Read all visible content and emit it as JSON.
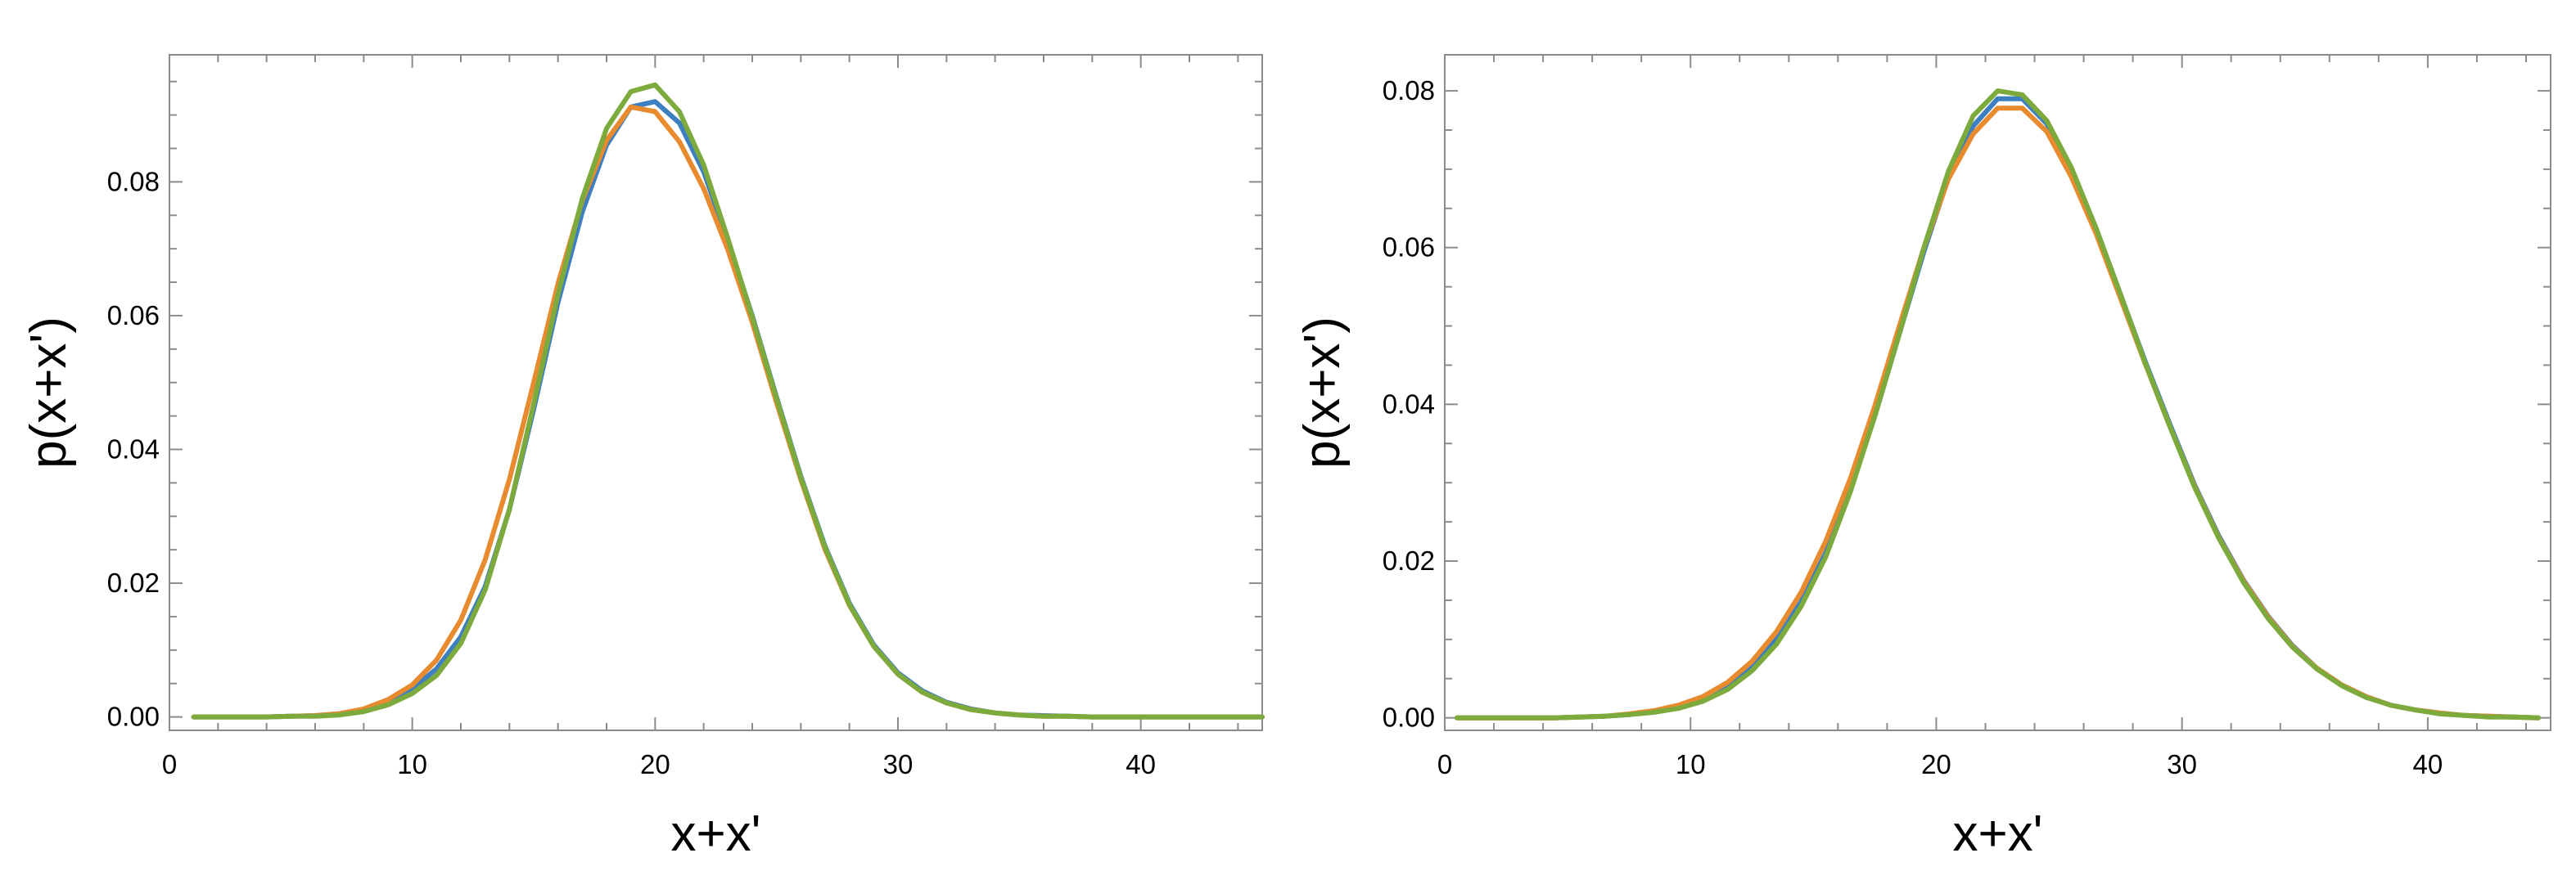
{
  "chart_data": [
    {
      "type": "line",
      "title": "",
      "xlabel": "x+x'",
      "ylabel": "p(x+x')",
      "xlim": [
        0,
        45
      ],
      "ylim": [
        -0.002,
        0.099
      ],
      "xticks": [
        0,
        10,
        20,
        30,
        40
      ],
      "xtick_labels": [
        "0",
        "10",
        "20",
        "30",
        "40"
      ],
      "yticks": [
        0,
        0.02,
        0.04,
        0.06,
        0.08
      ],
      "ytick_labels": [
        "0.00",
        "0.02",
        "0.04",
        "0.06",
        "0.08"
      ],
      "grid": false,
      "legend": "none",
      "x": [
        1,
        2,
        3,
        4,
        5,
        6,
        7,
        8,
        9,
        10,
        11,
        12,
        13,
        14,
        15,
        16,
        17,
        18,
        19,
        20,
        21,
        22,
        23,
        24,
        25,
        26,
        27,
        28,
        29,
        30,
        31,
        32,
        33,
        34,
        35,
        36,
        37,
        38,
        39,
        40,
        41,
        42,
        43,
        44,
        45
      ],
      "series": [
        {
          "color": "#3d7fc1",
          "values": [
            0,
            0,
            0,
            0,
            0.0001,
            0.0002,
            0.0005,
            0.0011,
            0.0023,
            0.0042,
            0.0072,
            0.012,
            0.0195,
            0.031,
            0.046,
            0.062,
            0.0755,
            0.0855,
            0.0912,
            0.092,
            0.0888,
            0.0815,
            0.0712,
            0.06,
            0.0478,
            0.036,
            0.0255,
            0.017,
            0.0108,
            0.0066,
            0.0039,
            0.0022,
            0.0012,
            0.0006,
            0.0003,
            0.0002,
            0.0001,
            0,
            0,
            0,
            0,
            0,
            0,
            0,
            0
          ]
        },
        {
          "color": "#e88a2e",
          "values": [
            0,
            0,
            0,
            0,
            0.0001,
            0.0002,
            0.0005,
            0.0012,
            0.0026,
            0.0048,
            0.0085,
            0.0145,
            0.0235,
            0.0355,
            0.05,
            0.0648,
            0.0772,
            0.0862,
            0.0912,
            0.0905,
            0.086,
            0.079,
            0.0698,
            0.059,
            0.047,
            0.0355,
            0.025,
            0.0167,
            0.0106,
            0.0064,
            0.0037,
            0.0021,
            0.0011,
            0.0006,
            0.0003,
            0.0001,
            0.0001,
            0,
            0,
            0,
            0,
            0,
            0,
            0,
            0
          ]
        },
        {
          "color": "#7daa3c",
          "values": [
            0,
            0,
            0,
            0,
            0.0001,
            0.0001,
            0.0003,
            0.0008,
            0.0018,
            0.0035,
            0.0062,
            0.011,
            0.019,
            0.031,
            0.0468,
            0.0632,
            0.0775,
            0.088,
            0.0935,
            0.0945,
            0.0905,
            0.0825,
            0.0715,
            0.0598,
            0.0476,
            0.0358,
            0.0253,
            0.0168,
            0.0106,
            0.0064,
            0.0037,
            0.0021,
            0.0011,
            0.0006,
            0.0003,
            0.0001,
            0.0001,
            0,
            0,
            0,
            0,
            0,
            0,
            0,
            0
          ]
        }
      ]
    },
    {
      "type": "line",
      "title": "",
      "xlabel": "x+x'",
      "ylabel": "p(x+x')",
      "xlim": [
        0,
        45
      ],
      "ylim": [
        -0.0016,
        0.0846
      ],
      "xticks": [
        0,
        10,
        20,
        30,
        40
      ],
      "xtick_labels": [
        "0",
        "10",
        "20",
        "30",
        "40"
      ],
      "yticks": [
        0,
        0.02,
        0.04,
        0.06,
        0.08
      ],
      "ytick_labels": [
        "0.00",
        "0.02",
        "0.04",
        "0.06",
        "0.08"
      ],
      "grid": false,
      "legend": "none",
      "x": [
        0.5,
        1.5,
        2.5,
        3.5,
        4.5,
        5.5,
        6.5,
        7.5,
        8.5,
        9.5,
        10.5,
        11.5,
        12.5,
        13.5,
        14.5,
        15.5,
        16.5,
        17.5,
        18.5,
        19.5,
        20.5,
        21.5,
        22.5,
        23.5,
        24.5,
        25.5,
        26.5,
        27.5,
        28.5,
        29.5,
        30.5,
        31.5,
        32.5,
        33.5,
        34.5,
        35.5,
        36.5,
        37.5,
        38.5,
        39.5,
        40.5,
        41.5,
        42.5,
        43.5,
        44.5
      ],
      "series": [
        {
          "color": "#3d7fc1",
          "values": [
            0,
            0,
            0,
            0,
            0,
            0.0001,
            0.0002,
            0.0004,
            0.0008,
            0.0014,
            0.0024,
            0.004,
            0.0065,
            0.01,
            0.0148,
            0.021,
            0.029,
            0.0385,
            0.049,
            0.0595,
            0.069,
            0.0755,
            0.079,
            0.079,
            0.0758,
            0.07,
            0.0625,
            0.054,
            0.0455,
            0.0375,
            0.0298,
            0.0232,
            0.0176,
            0.013,
            0.0092,
            0.0063,
            0.0042,
            0.0027,
            0.0016,
            0.001,
            0.0006,
            0.0003,
            0.0002,
            0.0001,
            0
          ]
        },
        {
          "color": "#e88a2e",
          "values": [
            0,
            0,
            0,
            0,
            0,
            0.0001,
            0.0002,
            0.0005,
            0.0009,
            0.0016,
            0.0027,
            0.0045,
            0.0072,
            0.011,
            0.016,
            0.0225,
            0.0305,
            0.0398,
            0.05,
            0.06,
            0.0688,
            0.0745,
            0.0778,
            0.0778,
            0.0748,
            0.069,
            0.0618,
            0.0535,
            0.0452,
            0.0372,
            0.0296,
            0.023,
            0.0175,
            0.0129,
            0.0091,
            0.0063,
            0.0042,
            0.0027,
            0.0016,
            0.001,
            0.0006,
            0.0003,
            0.0002,
            0.0001,
            0
          ]
        },
        {
          "color": "#7daa3c",
          "values": [
            0,
            0,
            0,
            0,
            0,
            0.0001,
            0.0002,
            0.0004,
            0.0007,
            0.0012,
            0.0021,
            0.0036,
            0.006,
            0.0094,
            0.0142,
            0.0205,
            0.0288,
            0.0385,
            0.049,
            0.06,
            0.0698,
            0.0768,
            0.08,
            0.0795,
            0.0762,
            0.0702,
            0.0625,
            0.054,
            0.0453,
            0.0372,
            0.0295,
            0.0229,
            0.0173,
            0.0127,
            0.009,
            0.0062,
            0.0041,
            0.0026,
            0.0016,
            0.001,
            0.0005,
            0.0003,
            0.0001,
            0.0001,
            0
          ]
        }
      ]
    }
  ]
}
